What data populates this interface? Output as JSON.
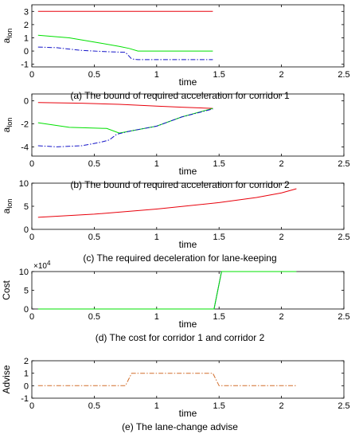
{
  "colors": {
    "red": "#e8000b",
    "green": "#00e000",
    "blue": "#1414c8",
    "orange": "#d26e2c",
    "axis": "#000000"
  },
  "chart_data": [
    {
      "type": "line",
      "caption": "(a)  The bound of required acceleration for corridor 1",
      "xlabel": "time",
      "ylabel": "a_lon",
      "ylabel_main": "a",
      "ylabel_sub": "lon",
      "xlim": [
        0,
        2.5
      ],
      "ylim": [
        -1.2,
        3.5
      ],
      "xticks": [
        0,
        0.5,
        1,
        1.5,
        2,
        2.5
      ],
      "xtick_labels": [
        "0",
        "0.5",
        "1",
        "1.5",
        "2",
        "2.5"
      ],
      "yticks": [
        -1,
        0,
        1,
        2,
        3
      ],
      "ytick_labels": [
        "-1",
        "0",
        "1",
        "2",
        "3"
      ],
      "series": [
        {
          "color": "red",
          "dash": "solid",
          "x": [
            0.05,
            1.45
          ],
          "y": [
            3.0,
            3.0
          ]
        },
        {
          "color": "green",
          "dash": "solid",
          "x": [
            0.05,
            0.3,
            0.55,
            0.7,
            0.78,
            0.85,
            1.45
          ],
          "y": [
            1.2,
            1.0,
            0.6,
            0.35,
            0.2,
            0.0,
            0.0
          ]
        },
        {
          "color": "blue",
          "dash": "dashdot",
          "x": [
            0.05,
            0.2,
            0.4,
            0.6,
            0.75,
            0.8,
            0.85,
            1.45
          ],
          "y": [
            0.3,
            0.25,
            0.05,
            -0.05,
            -0.1,
            -0.6,
            -0.65,
            -0.65
          ]
        }
      ]
    },
    {
      "type": "line",
      "caption": "(b)  The bound of required acceleration for corridor 2",
      "xlabel": "time",
      "ylabel": "a_lon",
      "ylabel_main": "a",
      "ylabel_sub": "lon",
      "xlim": [
        0,
        2.5
      ],
      "ylim": [
        -4.8,
        0.6
      ],
      "xticks": [
        0,
        0.5,
        1,
        1.5,
        2,
        2.5
      ],
      "xtick_labels": [
        "0",
        "0.5",
        "1",
        "1.5",
        "2",
        "2.5"
      ],
      "yticks": [
        -4,
        -2,
        0
      ],
      "ytick_labels": [
        "-4",
        "-2",
        "0"
      ],
      "series": [
        {
          "color": "red",
          "dash": "solid",
          "x": [
            0.05,
            0.4,
            0.7,
            1.0,
            1.2,
            1.45
          ],
          "y": [
            -0.15,
            -0.2,
            -0.3,
            -0.45,
            -0.55,
            -0.65
          ]
        },
        {
          "color": "green",
          "dash": "solid",
          "x": [
            0.05,
            0.3,
            0.6,
            0.7,
            0.8,
            1.0,
            1.2,
            1.45
          ],
          "y": [
            -1.9,
            -2.3,
            -2.4,
            -2.8,
            -2.6,
            -2.2,
            -1.4,
            -0.65
          ]
        },
        {
          "color": "blue",
          "dash": "dashdot",
          "x": [
            0.05,
            0.2,
            0.4,
            0.55,
            0.62,
            0.68,
            0.8,
            1.0,
            1.2,
            1.45
          ],
          "y": [
            -3.9,
            -4.0,
            -3.9,
            -3.6,
            -3.4,
            -2.9,
            -2.6,
            -2.2,
            -1.4,
            -0.7
          ]
        }
      ]
    },
    {
      "type": "line",
      "caption": "(c)  The required deceleration for lane-keeping",
      "xlabel": "time",
      "ylabel": "a_lon",
      "ylabel_main": "a",
      "ylabel_sub": "lon",
      "xlim": [
        0,
        2.5
      ],
      "ylim": [
        0,
        10
      ],
      "xticks": [
        0,
        0.5,
        1,
        1.5,
        2,
        2.5
      ],
      "xtick_labels": [
        "0",
        "0.5",
        "1",
        "1.5",
        "2",
        "2.5"
      ],
      "yticks": [
        0,
        5,
        10
      ],
      "ytick_labels": [
        "0",
        "5",
        "10"
      ],
      "series": [
        {
          "color": "red",
          "dash": "solid",
          "x": [
            0.05,
            0.5,
            1.0,
            1.5,
            1.8,
            2.0,
            2.12
          ],
          "y": [
            2.6,
            3.3,
            4.4,
            5.8,
            6.9,
            7.9,
            8.8
          ]
        }
      ]
    },
    {
      "type": "line",
      "caption": "(d)  The cost for corridor 1 and corridor 2",
      "xlabel": "time",
      "ylabel": "Cost",
      "exponent": "×10",
      "exponent_power": "4",
      "xlim": [
        0,
        2.5
      ],
      "ylim": [
        0,
        10
      ],
      "xticks": [
        0,
        0.5,
        1,
        1.5,
        2,
        2.5
      ],
      "xtick_labels": [
        "0",
        "0.5",
        "1",
        "1.5",
        "2",
        "2.5"
      ],
      "yticks": [
        0,
        5,
        10
      ],
      "ytick_labels": [
        "0",
        "5",
        "10"
      ],
      "series": [
        {
          "color": "blue",
          "dash": "solid",
          "x": [
            0.05,
            1.46,
            1.52,
            2.12
          ],
          "y": [
            0,
            0,
            10,
            10
          ]
        },
        {
          "color": "green",
          "dash": "solid",
          "x": [
            0.05,
            1.46,
            1.52,
            2.12
          ],
          "y": [
            0,
            0,
            10,
            10
          ]
        }
      ]
    },
    {
      "type": "line",
      "caption": "(e)  The lane-change advise",
      "xlabel": "time",
      "ylabel": "Advise",
      "xlim": [
        0,
        2.5
      ],
      "ylim": [
        -1,
        2
      ],
      "xticks": [
        0,
        0.5,
        1,
        1.5,
        2,
        2.5
      ],
      "xtick_labels": [
        "0",
        "0.5",
        "1",
        "1.5",
        "2",
        "2.5"
      ],
      "yticks": [
        -1,
        0,
        1,
        2
      ],
      "ytick_labels": [
        "-1",
        "0",
        "1",
        "2"
      ],
      "series": [
        {
          "color": "orange",
          "dash": "dashdot",
          "x": [
            0.05,
            0.75,
            0.8,
            1.45,
            1.5,
            2.12
          ],
          "y": [
            0,
            0,
            1,
            1,
            0,
            0
          ]
        }
      ]
    }
  ]
}
